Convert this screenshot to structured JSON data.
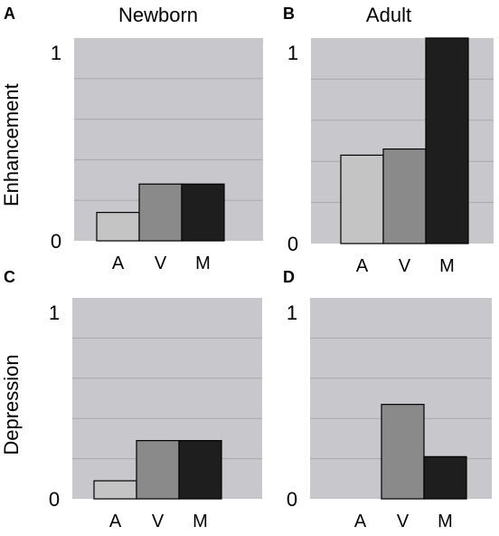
{
  "colors": {
    "plot_bg": "#c8c8cc",
    "grid": "#a9a9ad",
    "A": "#c4c4c4",
    "V": "#8a8a8a",
    "M": "#1e1e1e"
  },
  "chart_data": [
    {
      "panel": "A",
      "type": "bar",
      "title": "Newborn",
      "ylabel": "Enhancement",
      "categories": [
        "A",
        "V",
        "M"
      ],
      "values": [
        0.14,
        0.28,
        0.28
      ],
      "ylim": [
        0,
        1
      ],
      "ytick_labels": [
        "0",
        "1"
      ],
      "grid": true
    },
    {
      "panel": "B",
      "type": "bar",
      "title": "Adult",
      "ylabel": "",
      "categories": [
        "A",
        "V",
        "M"
      ],
      "values": [
        0.43,
        0.46,
        1.0
      ],
      "ylim": [
        0,
        1
      ],
      "ytick_labels": [
        "0",
        "1"
      ],
      "grid": true
    },
    {
      "panel": "C",
      "type": "bar",
      "title": "",
      "ylabel": "Depression",
      "categories": [
        "A",
        "V",
        "M"
      ],
      "values": [
        0.09,
        0.29,
        0.29
      ],
      "ylim": [
        0,
        1
      ],
      "ytick_labels": [
        "0",
        "1"
      ],
      "grid": true
    },
    {
      "panel": "D",
      "type": "bar",
      "title": "",
      "ylabel": "",
      "categories": [
        "A",
        "V",
        "M"
      ],
      "values": [
        0.0,
        0.47,
        0.21
      ],
      "ylim": [
        0,
        1
      ],
      "ytick_labels": [
        "0",
        "1"
      ],
      "grid": true
    }
  ]
}
